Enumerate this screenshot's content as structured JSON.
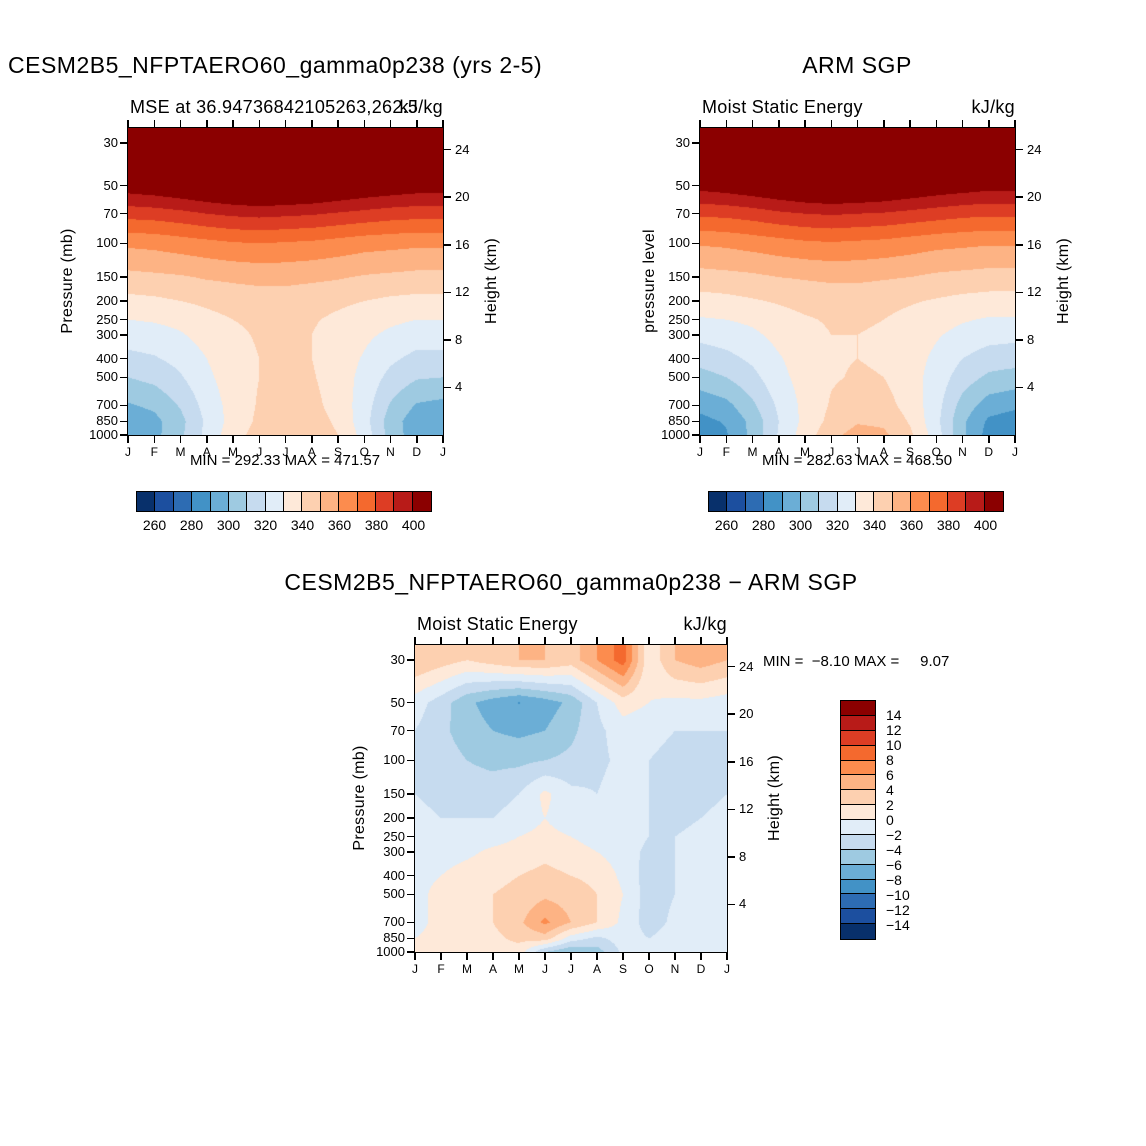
{
  "background": "#ffffff",
  "palette": [
    "#08306b",
    "#1c4f9f",
    "#2d6cb3",
    "#4292c6",
    "#6baed6",
    "#9ecae1",
    "#c6dbef",
    "#e1edf8",
    "#fee9d9",
    "#fdd0b0",
    "#fdb384",
    "#fc8c4e",
    "#f4692e",
    "#dd3d24",
    "#b81b18",
    "#8b0000"
  ],
  "chart_data": [
    {
      "type": "contour",
      "panel": "model",
      "title": "CESM2B5_NFPTAERO60_gamma0p238 (yrs 2-5)",
      "subtitle_left": "MSE at 36.94736842105263,262.5",
      "units": "kJ/kg",
      "ylabel_left": "Pressure (mb)",
      "ylabel_right": "Height (km)",
      "minmax": "MIN = 292.33 MAX = 471.57",
      "min": 292.33,
      "max": 471.57,
      "months": [
        "J",
        "F",
        "M",
        "A",
        "M",
        "J",
        "J",
        "A",
        "S",
        "O",
        "N",
        "D",
        "J"
      ],
      "pressure_labels": [
        "30",
        "50",
        "70",
        "100",
        "150",
        "200",
        "250",
        "300",
        "400",
        "500",
        "700",
        "850",
        "1000"
      ],
      "pressure_levels": [
        30,
        50,
        70,
        100,
        150,
        200,
        250,
        300,
        400,
        500,
        700,
        850,
        1000
      ],
      "height_ticks": [
        "4",
        "8",
        "12",
        "16",
        "20",
        "24"
      ],
      "colorbar": {
        "orientation": "horizontal",
        "level_min": 250,
        "level_max": 410,
        "step": 10,
        "tick_labels": [
          "260",
          "280",
          "300",
          "320",
          "340",
          "360",
          "380",
          "400"
        ]
      },
      "values": [
        [
          452,
          455,
          460,
          465,
          469,
          471.57,
          470,
          467,
          463,
          458,
          454,
          452,
          452
        ],
        [
          406,
          408,
          411,
          414,
          417,
          419,
          418,
          416,
          413,
          410,
          408,
          406,
          406
        ],
        [
          384,
          385,
          387,
          390,
          392,
          393,
          392,
          391,
          389,
          387,
          385,
          384,
          384
        ],
        [
          362,
          363,
          365,
          367,
          369,
          370,
          369,
          368,
          366,
          364,
          363,
          362,
          362
        ],
        [
          347,
          348,
          349,
          351,
          352,
          353,
          353,
          352,
          351,
          349,
          348,
          347,
          347
        ],
        [
          337,
          338,
          340,
          342,
          344,
          345,
          345,
          344,
          342,
          340,
          338,
          337,
          337
        ],
        [
          330,
          331,
          333,
          337,
          340,
          342,
          342,
          341,
          338,
          335,
          332,
          330,
          330
        ],
        [
          325,
          326,
          329,
          334,
          338,
          341,
          341,
          340,
          336,
          332,
          328,
          325,
          325
        ],
        [
          317,
          319,
          323,
          330,
          336,
          340,
          341,
          340,
          335,
          329,
          322,
          317,
          317
        ],
        [
          310,
          313,
          319,
          328,
          335,
          340,
          342,
          341,
          335,
          327,
          317,
          311,
          310
        ],
        [
          299,
          302,
          311,
          324,
          334,
          341,
          344,
          343,
          336,
          325,
          309,
          299,
          297
        ],
        [
          294,
          297,
          307,
          322,
          334,
          342,
          346,
          345,
          338,
          324,
          305,
          294,
          293
        ],
        [
          294,
          297,
          308,
          323,
          336,
          344,
          348,
          347,
          340,
          326,
          306,
          294,
          292.33
        ]
      ]
    },
    {
      "type": "contour",
      "panel": "obs",
      "title": "ARM SGP",
      "subtitle_left": "Moist Static Energy",
      "units": "kJ/kg",
      "ylabel_left": "pressure level",
      "ylabel_right": "Height (km)",
      "minmax": "MIN = 282.63 MAX = 468.50",
      "min": 282.63,
      "max": 468.5,
      "months": [
        "J",
        "F",
        "M",
        "A",
        "M",
        "J",
        "J",
        "A",
        "S",
        "O",
        "N",
        "D",
        "J"
      ],
      "pressure_labels": [
        "30",
        "50",
        "70",
        "100",
        "150",
        "200",
        "250",
        "300",
        "400",
        "500",
        "700",
        "850",
        "1000"
      ],
      "pressure_levels": [
        30,
        50,
        70,
        100,
        150,
        200,
        250,
        300,
        400,
        500,
        700,
        850,
        1000
      ],
      "height_ticks": [
        "4",
        "8",
        "12",
        "16",
        "20",
        "24"
      ],
      "colorbar": {
        "orientation": "horizontal",
        "level_min": 250,
        "level_max": 410,
        "step": 10,
        "tick_labels": [
          "260",
          "280",
          "300",
          "320",
          "340",
          "360",
          "380",
          "400"
        ]
      },
      "values": [
        [
          450,
          452,
          457,
          462,
          466,
          468.5,
          467,
          465,
          461,
          456,
          452,
          450,
          450
        ],
        [
          404,
          406,
          409,
          412,
          415,
          417,
          416,
          414,
          411,
          408,
          406,
          404,
          404
        ],
        [
          382,
          383,
          385,
          388,
          390,
          391,
          390,
          389,
          387,
          385,
          383,
          382,
          382
        ],
        [
          361,
          362,
          364,
          366,
          368,
          369,
          368,
          367,
          365,
          363,
          362,
          361,
          361
        ],
        [
          346,
          347,
          348,
          350,
          351,
          352,
          352,
          351,
          350,
          348,
          347,
          346,
          346
        ],
        [
          336,
          337,
          339,
          341,
          343,
          344,
          344,
          343,
          341,
          339,
          337,
          336,
          336
        ],
        [
          329,
          330,
          332,
          336,
          339,
          341,
          341,
          340,
          337,
          334,
          331,
          329,
          329
        ],
        [
          323,
          325,
          328,
          333,
          337,
          340,
          340,
          339,
          335,
          331,
          327,
          324,
          323
        ],
        [
          314,
          317,
          322,
          329,
          335,
          339,
          340,
          339,
          334,
          328,
          320,
          315,
          314
        ],
        [
          306,
          310,
          317,
          327,
          334,
          339,
          341,
          340,
          334,
          326,
          315,
          308,
          306
        ],
        [
          293,
          297,
          308,
          322,
          333,
          341,
          345,
          344,
          336,
          324,
          306,
          295,
          292
        ],
        [
          287,
          291,
          303,
          320,
          333,
          343,
          349,
          348,
          339,
          323,
          302,
          288,
          285
        ],
        [
          285,
          289,
          303,
          321,
          335,
          347,
          354,
          352,
          342,
          325,
          302,
          286,
          282.63
        ]
      ]
    },
    {
      "type": "contour",
      "panel": "difference",
      "title": "CESM2B5_NFPTAERO60_gamma0p238 − ARM SGP",
      "subtitle_left": "Moist Static Energy",
      "units": "kJ/kg",
      "ylabel_left": "Pressure (mb)",
      "ylabel_right": "Height (km)",
      "minmax": "MIN =  −8.10 MAX =     9.07",
      "min": -8.1,
      "max": 9.07,
      "months": [
        "J",
        "F",
        "M",
        "A",
        "M",
        "J",
        "J",
        "A",
        "S",
        "O",
        "N",
        "D",
        "J"
      ],
      "pressure_labels": [
        "30",
        "50",
        "70",
        "100",
        "150",
        "200",
        "250",
        "300",
        "400",
        "500",
        "700",
        "850",
        "1000"
      ],
      "pressure_levels": [
        30,
        50,
        70,
        100,
        150,
        200,
        250,
        300,
        400,
        500,
        700,
        850,
        1000
      ],
      "height_ticks": [
        "4",
        "8",
        "12",
        "16",
        "20",
        "24"
      ],
      "colorbar": {
        "orientation": "vertical",
        "level_min": -16,
        "level_max": 16,
        "step": 2,
        "tick_labels": [
          "14",
          "12",
          "10",
          "8",
          "6",
          "4",
          "2",
          "0",
          "−2",
          "−4",
          "−6",
          "−8",
          "−10",
          "−12",
          "−14"
        ]
      },
      "values": [
        [
          4,
          3,
          2,
          3,
          4,
          4,
          3,
          6,
          9.07,
          0.5,
          4,
          5,
          4
        ],
        [
          -1,
          -3,
          -5.5,
          -7,
          -8.1,
          -7,
          -5.5,
          -2,
          1,
          0,
          -0.5,
          -0.5,
          -1
        ],
        [
          -2,
          -3.5,
          -5,
          -6,
          -6.5,
          -6,
          -4.5,
          -2.5,
          -1,
          -1.5,
          -2,
          -2,
          -2
        ],
        [
          -2.5,
          -3,
          -4,
          -4.5,
          -4.5,
          -4,
          -3.5,
          -2.5,
          -1.5,
          -2,
          -2.5,
          -2.5,
          -2.5
        ],
        [
          -2,
          -2.5,
          -3,
          -3,
          -2,
          0.5,
          -1.5,
          -2,
          -1,
          -2,
          -3,
          -2.5,
          -2
        ],
        [
          -1.5,
          -2,
          -2,
          -2,
          -1,
          0,
          -1,
          -1.5,
          -1,
          -2,
          -2.5,
          -2,
          -1.5
        ],
        [
          -1,
          -1.5,
          -1.5,
          -1,
          0,
          0.5,
          0,
          -1,
          -1,
          -2,
          -2,
          -1.5,
          -1
        ],
        [
          -1,
          -1,
          -0.5,
          0.5,
          1,
          1.5,
          1,
          0,
          -1,
          -2.5,
          -2,
          -1,
          -1
        ],
        [
          -0.5,
          0,
          1,
          1.5,
          2,
          2.5,
          2,
          1.5,
          -0.5,
          -3,
          -2,
          -1,
          -0.5
        ],
        [
          -0.5,
          0.5,
          1,
          2,
          2.5,
          3.5,
          3,
          2,
          0,
          -3,
          -2,
          -1,
          -0.5
        ],
        [
          -0.5,
          0.5,
          1.5,
          2,
          3.5,
          6.5,
          4,
          2,
          -0.5,
          -3,
          -1.5,
          -1,
          -0.5
        ],
        [
          0,
          0.5,
          1,
          1.5,
          2.5,
          3,
          -1,
          -2.5,
          -1,
          -2,
          -1,
          -0.5,
          0
        ],
        [
          0,
          0.5,
          1,
          1.5,
          1,
          -4,
          -6,
          -5,
          -1.5,
          -2,
          -1,
          -0.5,
          0
        ]
      ]
    }
  ]
}
